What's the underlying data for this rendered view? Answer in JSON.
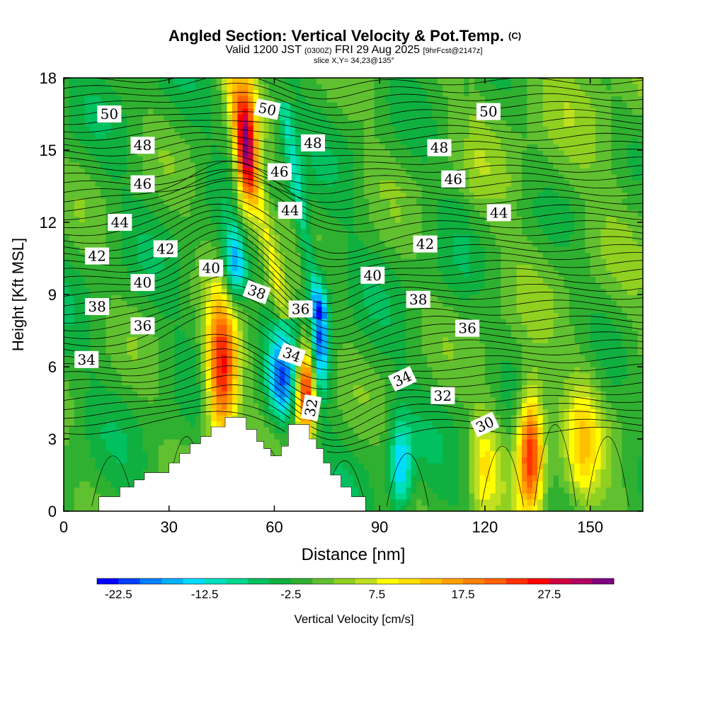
{
  "title": {
    "main": "Angled Section: Vertical Velocity & Pot.Temp.",
    "main_suffix": "(C)",
    "valid_prefix": "Valid 1200 JST",
    "valid_z": "(0300Z)",
    "valid_date": "FRI 29 Aug 2025",
    "valid_fcst": "[9hrFcst@2147z]",
    "slice": "slice X,Y= 34,23@135°"
  },
  "chart_data": {
    "type": "heatmap",
    "xlabel": "Distance [nm]",
    "ylabel": "Height [Kft MSL]",
    "xlim": [
      0,
      165
    ],
    "ylim": [
      0,
      18
    ],
    "x_ticks": [
      0,
      30,
      60,
      90,
      120,
      150
    ],
    "y_ticks": [
      0,
      3,
      6,
      9,
      12,
      15,
      18
    ],
    "shaded_field": "Vertical Velocity",
    "colorbar": {
      "label": "Vertical Velocity [cm/s]",
      "tick_labels": [
        "-22.5",
        "-12.5",
        "-2.5",
        "7.5",
        "17.5",
        "27.5"
      ],
      "tick_values": [
        -22.5,
        -12.5,
        -2.5,
        7.5,
        17.5,
        27.5
      ],
      "levels_min": -25,
      "levels_max": 32.5,
      "level_step": 2.5,
      "colors": [
        "#0000ff",
        "#0040ff",
        "#0080ff",
        "#00b0ff",
        "#00dcff",
        "#00e0c0",
        "#00d890",
        "#00c060",
        "#10b040",
        "#30b030",
        "#60c030",
        "#90d020",
        "#c0e020",
        "#ffff00",
        "#ffe000",
        "#ffc000",
        "#ffa000",
        "#ff8000",
        "#ff6000",
        "#ff3000",
        "#ff0000",
        "#d00040",
        "#b00060",
        "#800080"
      ]
    },
    "terrain": [
      [
        10,
        0
      ],
      [
        10,
        0.6
      ],
      [
        16,
        0.6
      ],
      [
        16,
        1
      ],
      [
        20,
        1
      ],
      [
        20,
        1.3
      ],
      [
        23,
        1.3
      ],
      [
        23,
        1.6
      ],
      [
        30,
        1.6
      ],
      [
        30,
        2
      ],
      [
        33,
        2
      ],
      [
        33,
        2.4
      ],
      [
        36,
        2.4
      ],
      [
        36,
        2.8
      ],
      [
        39,
        2.8
      ],
      [
        39,
        3.1
      ],
      [
        42,
        3.1
      ],
      [
        42,
        3.5
      ],
      [
        46,
        3.5
      ],
      [
        46,
        3.9
      ],
      [
        52,
        3.9
      ],
      [
        52,
        3.4
      ],
      [
        55,
        3.4
      ],
      [
        55,
        2.9
      ],
      [
        57,
        2.9
      ],
      [
        57,
        2.6
      ],
      [
        59,
        2.6
      ],
      [
        59,
        2.3
      ],
      [
        62,
        2.3
      ],
      [
        62,
        2.7
      ],
      [
        64,
        2.7
      ],
      [
        64,
        3.6
      ],
      [
        70,
        3.6
      ],
      [
        70,
        3.0
      ],
      [
        72,
        3.0
      ],
      [
        72,
        2.6
      ],
      [
        74,
        2.6
      ],
      [
        74,
        2.0
      ],
      [
        76,
        2.0
      ],
      [
        76,
        1.5
      ],
      [
        79,
        1.5
      ],
      [
        79,
        1.0
      ],
      [
        82,
        1.0
      ],
      [
        82,
        0.6
      ],
      [
        86,
        0.6
      ],
      [
        86,
        0
      ]
    ],
    "theta_contours": [
      {
        "level": 30,
        "labels": [
          [
            120,
            3.6
          ]
        ]
      },
      {
        "level": 32,
        "labels": [
          [
            108,
            4.8
          ],
          [
            70.5,
            4.3
          ]
        ]
      },
      {
        "level": 34,
        "labels": [
          [
            6.5,
            6.3
          ],
          [
            65,
            6.5
          ],
          [
            96.5,
            5.5
          ]
        ]
      },
      {
        "level": 36,
        "labels": [
          [
            22.5,
            7.7
          ],
          [
            67.5,
            8.4
          ],
          [
            115,
            7.6
          ]
        ]
      },
      {
        "level": 38,
        "labels": [
          [
            9.5,
            8.5
          ],
          [
            55,
            9.1
          ],
          [
            101,
            8.8
          ]
        ]
      },
      {
        "level": 40,
        "labels": [
          [
            22.5,
            9.5
          ],
          [
            42,
            10.1
          ],
          [
            88,
            9.8
          ]
        ]
      },
      {
        "level": 42,
        "labels": [
          [
            9.5,
            10.6
          ],
          [
            29,
            10.9
          ],
          [
            103,
            11.1
          ]
        ]
      },
      {
        "level": 44,
        "labels": [
          [
            16,
            12.0
          ],
          [
            64.5,
            12.5
          ],
          [
            124,
            12.4
          ]
        ]
      },
      {
        "level": 46,
        "labels": [
          [
            22.5,
            13.6
          ],
          [
            61.5,
            14.1
          ],
          [
            111,
            13.8
          ]
        ]
      },
      {
        "level": 48,
        "labels": [
          [
            22.5,
            15.2
          ],
          [
            71,
            15.3
          ],
          [
            107,
            15.1
          ]
        ]
      },
      {
        "level": 50,
        "labels": [
          [
            13,
            16.5
          ],
          [
            58,
            16.7
          ],
          [
            121,
            16.6
          ]
        ]
      }
    ],
    "velocity_features": [
      {
        "kind": "updraft",
        "x": 45,
        "y": 5.8,
        "sx": 3.2,
        "sy": 2.2,
        "peak": 28
      },
      {
        "kind": "updraft",
        "x": 52,
        "y": 15.0,
        "sx": 2.2,
        "sy": 2.4,
        "peak": 24
      },
      {
        "kind": "updraft",
        "x": 69,
        "y": 5.0,
        "sx": 2.0,
        "sy": 1.4,
        "peak": 30
      },
      {
        "kind": "downdraft",
        "x": 62,
        "y": 5.4,
        "sx": 3.0,
        "sy": 1.3,
        "peak": -18
      },
      {
        "kind": "downdraft",
        "x": 73,
        "y": 7.2,
        "sx": 1.8,
        "sy": 1.6,
        "peak": -20
      },
      {
        "kind": "downdraft",
        "x": 49,
        "y": 10.2,
        "sx": 2.4,
        "sy": 1.2,
        "peak": -18
      },
      {
        "kind": "downdraft",
        "x": 96,
        "y": 1.8,
        "sx": 2.2,
        "sy": 1.4,
        "peak": -14
      },
      {
        "kind": "updraft",
        "x": 133,
        "y": 2.5,
        "sx": 2.5,
        "sy": 1.8,
        "peak": 26
      },
      {
        "kind": "updraft",
        "x": 148,
        "y": 2.8,
        "sx": 3.5,
        "sy": 2.0,
        "peak": 10
      },
      {
        "kind": "updraft",
        "x": 120,
        "y": 2.0,
        "sx": 2.5,
        "sy": 1.6,
        "peak": 8
      }
    ]
  }
}
